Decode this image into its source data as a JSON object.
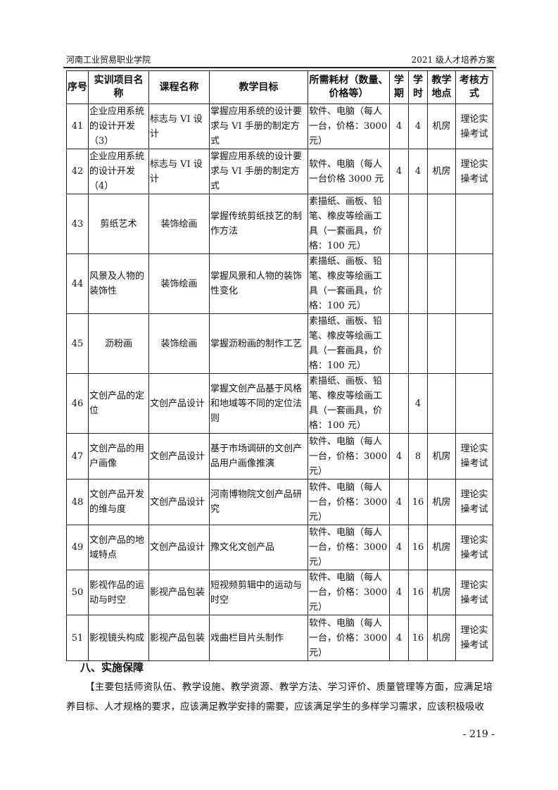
{
  "header": {
    "left": "河南工业贸易职业学院",
    "right": "2021 级人才培养方案"
  },
  "table": {
    "columns": [
      "序号",
      "实训项目名称",
      "课程名称",
      "教学目标",
      "所需耗材（数量、价格等）",
      "学期",
      "学时",
      "教学地点",
      "考核方式"
    ],
    "rows": [
      [
        "41",
        "企业应用系统的设计开发（3）",
        "标志与 VI 设计",
        "掌握应用系统的设计要求与 VI 手册的制定方式",
        "软件、电脑（每人一台，价格：3000 元）",
        "4",
        "4",
        "机房",
        "理论实操考试"
      ],
      [
        "42",
        "企业应用系统的设计开发（4）",
        "标志与 VI 设计",
        "掌握应用系统的设计要求与 VI 手册的制定方式",
        "软件、电脑（每人一台价格 3000 元",
        "4",
        "4",
        "机房",
        "理论实操考试"
      ],
      [
        "43",
        "剪纸艺术",
        "装饰绘画",
        "掌握传统剪纸技艺的制作方法",
        "素描纸、画板、铅笔、橡皮等绘画工具（一套画具，价格：100 元）",
        "",
        "",
        "",
        ""
      ],
      [
        "44",
        "风景及人物的装饰性",
        "装饰绘画",
        "掌握风景和人物的装饰性变化",
        "素描纸、画板、铅笔、橡皮等绘画工具（一套画具，价格：100 元）",
        "",
        "",
        "",
        ""
      ],
      [
        "45",
        "沥粉画",
        "装饰绘画",
        "掌握沥粉画的制作工艺",
        "素描纸、画板、铅笔、橡皮等绘画工具（一套画具，价格：100 元）",
        "",
        "",
        "",
        ""
      ],
      [
        "46",
        "文创产品的定位",
        "文创产品设计",
        "掌握文创产品基于风格和地域等不同的定位法则",
        "素描纸、画板、铅笔、橡皮等绘画工具（一套画具，价格：100 元）",
        "",
        "4",
        "",
        ""
      ],
      [
        "47",
        "文创产品的用户画像",
        "文创产品设计",
        "基于市场调研的文创产品用户画像推演",
        "软件、电脑（每人一台，价格：3000 元）",
        "4",
        "8",
        "机房",
        "理论实操考试"
      ],
      [
        "48",
        "文创产品开发的维与度",
        "文创产品设计",
        "河南博物院文创产品研究",
        "软件、电脑（每人一台，价格：3000 元）",
        "4",
        "16",
        "机房",
        "理论实操考试"
      ],
      [
        "49",
        "文创产品的地域特点",
        "文创产品设计",
        "豫文化文创产品",
        "软件、电脑（每人一台，价格：3000 元）",
        "4",
        "16",
        "机房",
        "理论实操考试"
      ],
      [
        "50",
        "影视作品的运动与时空",
        "影视产品包装",
        "短视频剪辑中的运动与时空",
        "软件、电脑（每人一台，价格：3000 元）",
        "4",
        "16",
        "机房",
        "理论实操考试"
      ],
      [
        "51",
        "影视镜头构成",
        "影视产品包装",
        "戏曲栏目片头制作",
        "软件、电脑（每人一台，价格：3000 元）",
        "4",
        "16",
        "机房",
        "理论实操考试"
      ]
    ]
  },
  "section": {
    "title": "八、实施保障",
    "paragraph": "【主要包括师资队伍、教学设施、教学资源、教学方法、学习评价、质量管理等方面，应满足培养目标、人才规格的要求，应该满足教学安排的需要，应该满足学生的多样学习需求，应该积极吸收"
  },
  "page_number": "- 219 -"
}
